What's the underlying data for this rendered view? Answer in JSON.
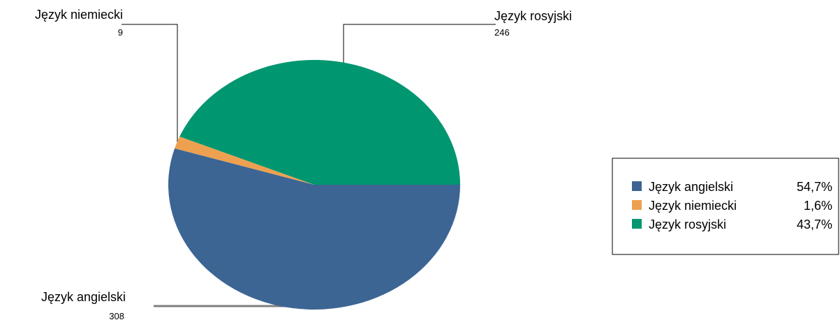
{
  "chart_data": {
    "type": "pie",
    "title": "",
    "slices": [
      {
        "name": "Język angielski",
        "value": 308,
        "percent": "54,7%",
        "color": "#3c6594"
      },
      {
        "name": "Język niemiecki",
        "value": 9,
        "percent": "1,6%",
        "color": "#eda150"
      },
      {
        "name": "Język rosyjski",
        "value": 246,
        "percent": "43,7%",
        "color": "#009670"
      }
    ],
    "legend": {
      "position": "right"
    }
  }
}
